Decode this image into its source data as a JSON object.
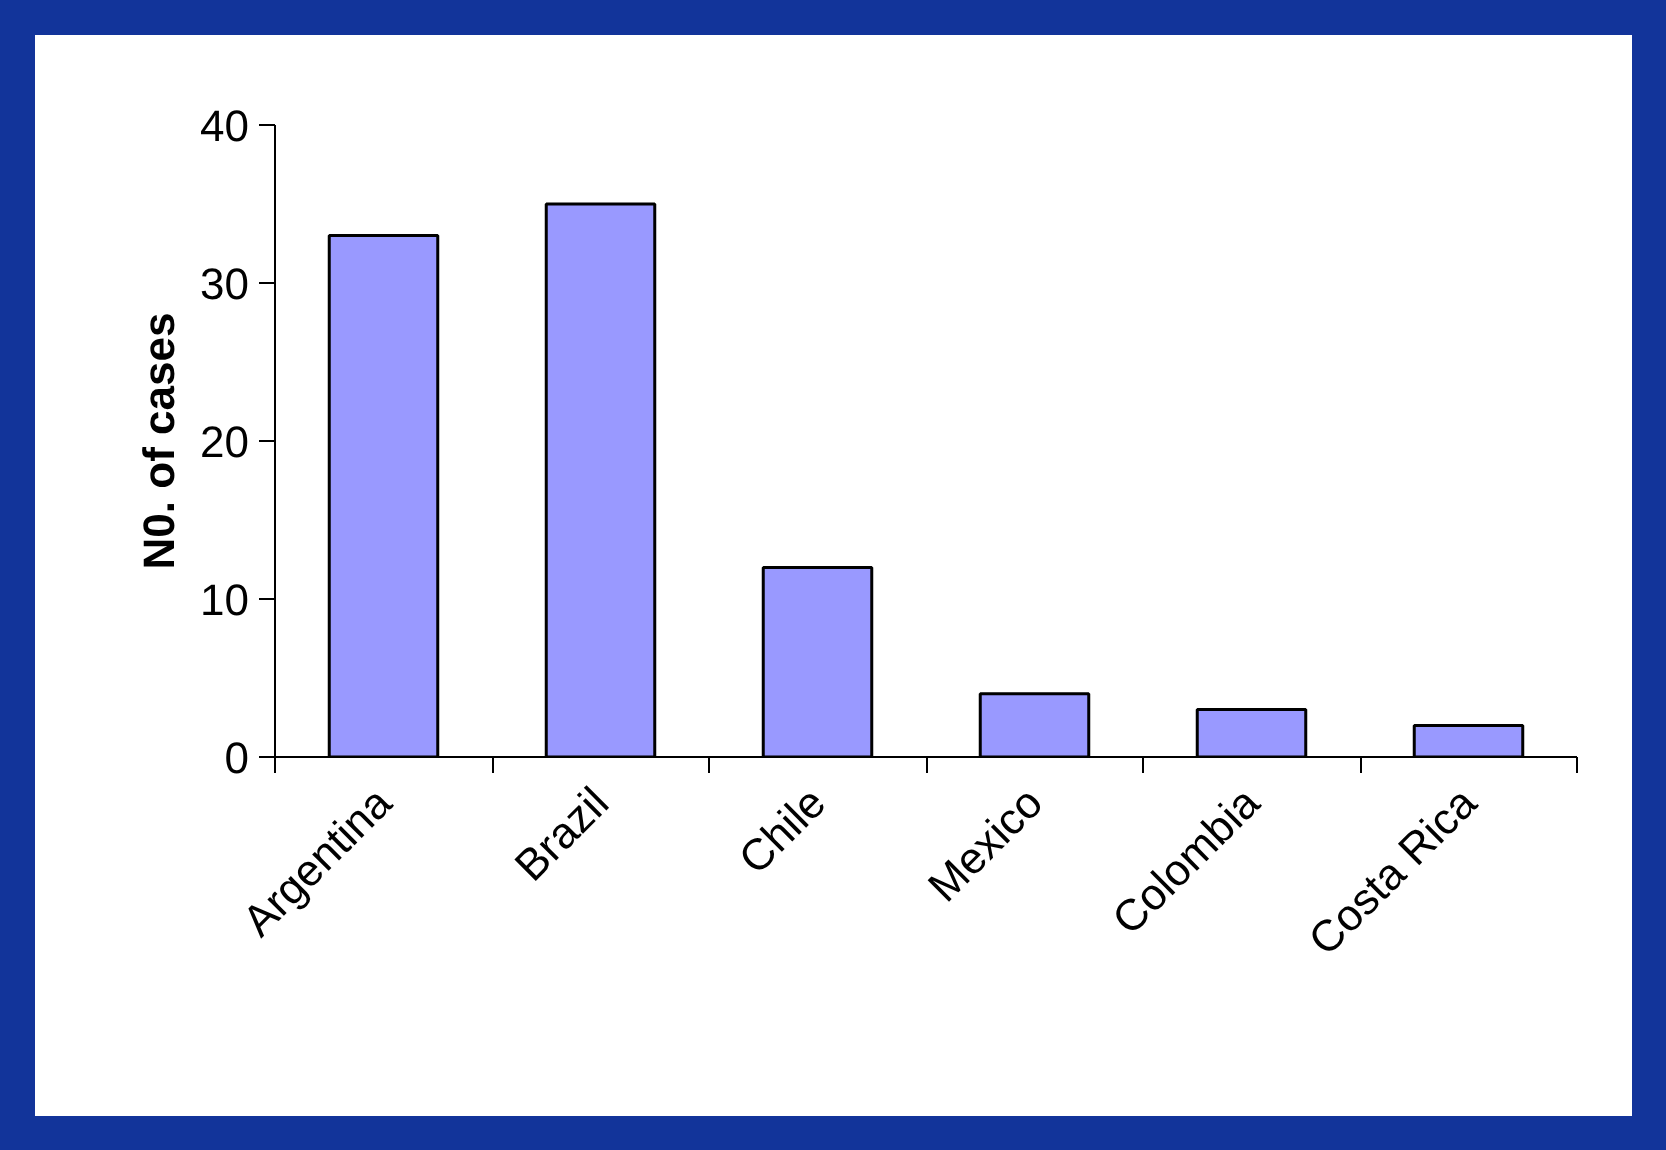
{
  "chart_data": {
    "type": "bar",
    "ylabel": "N0. of cases",
    "categories": [
      "Argentina",
      "Brazil",
      "Chile",
      "Mexico",
      "Colombia",
      "Costa Rica"
    ],
    "values": [
      33,
      35,
      12,
      4,
      3,
      2
    ],
    "color": "#9999ff",
    "ylim": [
      0,
      40
    ],
    "yticks": [
      0,
      10,
      20,
      30,
      40
    ]
  }
}
